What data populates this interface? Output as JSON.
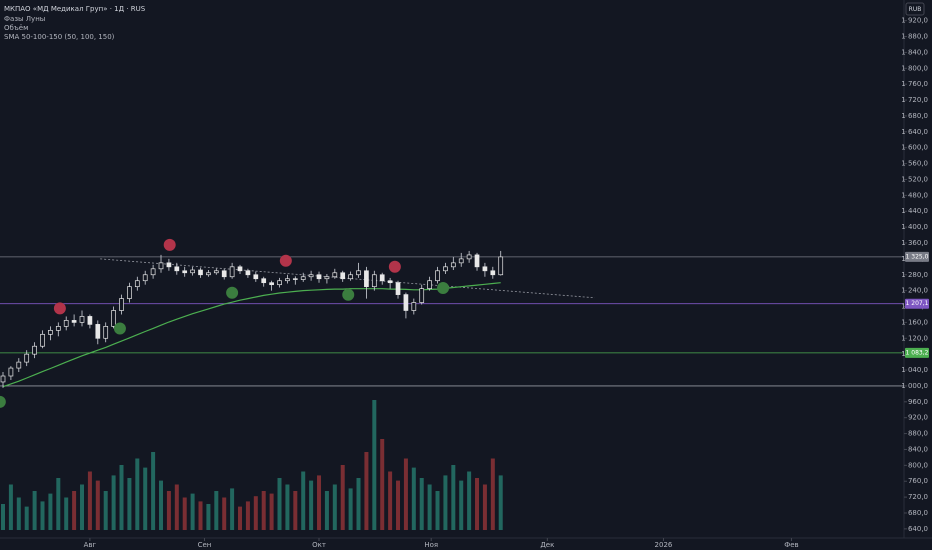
{
  "chart_data": {
    "type": "candlestick",
    "title": "МКПАО «МД Медикал Груп» · 1Д · RUS",
    "indicators": [
      "Фазы Луны",
      "Объём",
      "SMA 50-100-150 (50, 100, 150)"
    ],
    "currency": "RUB",
    "ohlc": [
      [
        1010,
        1035,
        995,
        1025
      ],
      [
        1025,
        1050,
        1015,
        1045
      ],
      [
        1045,
        1070,
        1035,
        1060
      ],
      [
        1060,
        1090,
        1050,
        1080
      ],
      [
        1080,
        1110,
        1070,
        1100
      ],
      [
        1100,
        1140,
        1095,
        1130
      ],
      [
        1130,
        1150,
        1115,
        1140
      ],
      [
        1140,
        1160,
        1125,
        1150
      ],
      [
        1150,
        1175,
        1140,
        1165
      ],
      [
        1165,
        1180,
        1150,
        1160
      ],
      [
        1160,
        1190,
        1150,
        1175
      ],
      [
        1175,
        1180,
        1145,
        1155
      ],
      [
        1155,
        1165,
        1105,
        1120
      ],
      [
        1120,
        1160,
        1110,
        1150
      ],
      [
        1150,
        1200,
        1145,
        1190
      ],
      [
        1190,
        1230,
        1180,
        1220
      ],
      [
        1220,
        1260,
        1210,
        1250
      ],
      [
        1250,
        1275,
        1240,
        1265
      ],
      [
        1265,
        1290,
        1255,
        1280
      ],
      [
        1280,
        1305,
        1270,
        1295
      ],
      [
        1295,
        1330,
        1285,
        1310
      ],
      [
        1310,
        1320,
        1290,
        1300
      ],
      [
        1300,
        1310,
        1280,
        1290
      ],
      [
        1290,
        1300,
        1275,
        1285
      ],
      [
        1285,
        1300,
        1278,
        1292
      ],
      [
        1292,
        1298,
        1272,
        1280
      ],
      [
        1280,
        1292,
        1275,
        1285
      ],
      [
        1285,
        1296,
        1280,
        1290
      ],
      [
        1290,
        1295,
        1268,
        1275
      ],
      [
        1275,
        1310,
        1270,
        1300
      ],
      [
        1300,
        1305,
        1282,
        1290
      ],
      [
        1290,
        1295,
        1272,
        1280
      ],
      [
        1280,
        1288,
        1262,
        1270
      ],
      [
        1270,
        1275,
        1250,
        1260
      ],
      [
        1260,
        1265,
        1240,
        1255
      ],
      [
        1255,
        1272,
        1248,
        1265
      ],
      [
        1265,
        1280,
        1258,
        1270
      ],
      [
        1270,
        1276,
        1255,
        1268
      ],
      [
        1268,
        1285,
        1262,
        1275
      ],
      [
        1275,
        1290,
        1265,
        1280
      ],
      [
        1280,
        1288,
        1260,
        1270
      ],
      [
        1270,
        1282,
        1258,
        1275
      ],
      [
        1275,
        1295,
        1270,
        1285
      ],
      [
        1285,
        1290,
        1262,
        1270
      ],
      [
        1270,
        1288,
        1265,
        1280
      ],
      [
        1280,
        1310,
        1272,
        1290
      ],
      [
        1290,
        1300,
        1220,
        1250
      ],
      [
        1250,
        1290,
        1240,
        1280
      ],
      [
        1280,
        1285,
        1255,
        1265
      ],
      [
        1265,
        1272,
        1245,
        1260
      ],
      [
        1260,
        1265,
        1220,
        1230
      ],
      [
        1230,
        1235,
        1170,
        1190
      ],
      [
        1190,
        1220,
        1180,
        1210
      ],
      [
        1210,
        1255,
        1205,
        1245
      ],
      [
        1245,
        1275,
        1240,
        1265
      ],
      [
        1265,
        1300,
        1258,
        1290
      ],
      [
        1290,
        1310,
        1282,
        1300
      ],
      [
        1300,
        1325,
        1292,
        1310
      ],
      [
        1310,
        1335,
        1300,
        1320
      ],
      [
        1320,
        1340,
        1310,
        1330
      ],
      [
        1330,
        1335,
        1290,
        1300
      ],
      [
        1300,
        1310,
        1275,
        1290
      ],
      [
        1290,
        1300,
        1270,
        1280
      ],
      [
        1280,
        1340,
        1278,
        1325
      ]
    ],
    "sma": [
      998,
      1005,
      1012,
      1020,
      1028,
      1036,
      1044,
      1052,
      1060,
      1068,
      1076,
      1083,
      1090,
      1097,
      1105,
      1113,
      1121,
      1129,
      1137,
      1145,
      1153,
      1161,
      1168,
      1175,
      1182,
      1188,
      1194,
      1200,
      1206,
      1211,
      1216,
      1220,
      1224,
      1228,
      1231,
      1234,
      1236,
      1238,
      1240,
      1241,
      1242,
      1243,
      1244,
      1244,
      1245,
      1245,
      1245,
      1245,
      1245,
      1244,
      1244,
      1243,
      1242,
      1242,
      1243,
      1244,
      1246,
      1248,
      1250,
      1252,
      1254,
      1256,
      1258,
      1260
    ],
    "sma_color": "#4caf50",
    "volume": [
      20,
      35,
      25,
      18,
      30,
      22,
      28,
      40,
      25,
      30,
      35,
      45,
      38,
      30,
      42,
      50,
      40,
      55,
      48,
      60,
      38,
      30,
      35,
      25,
      28,
      22,
      20,
      30,
      25,
      32,
      18,
      22,
      26,
      30,
      28,
      40,
      35,
      30,
      45,
      38,
      42,
      30,
      35,
      50,
      32,
      40,
      60,
      100,
      70,
      45,
      38,
      55,
      48,
      40,
      35,
      30,
      42,
      50,
      38,
      45,
      40,
      35,
      55,
      42
    ],
    "volume_lim": [
      0,
      100
    ],
    "up_color": "#e8e8e8",
    "down_color": "#e8e8e8",
    "volume_up_color": "#22675f",
    "volume_down_color": "#7a2e33",
    "full_moon_x": [
      7.2,
      21.1,
      35.8,
      49.6
    ],
    "full_moon_color": "#b2344a",
    "new_moon_x": [
      -0.4,
      14.8,
      29.0,
      43.7,
      55.7
    ],
    "new_moon_color": "#3b7d3f",
    "trend_line": [
      [
        12.3,
        1320
      ],
      [
        74.9,
        1222
      ]
    ],
    "levels": [
      {
        "value": 1325,
        "label": "1 325,0",
        "color": "#787b86"
      },
      {
        "value": 1207.1,
        "label": "1 207,1",
        "color": "#7e57c2"
      },
      {
        "value": 1083.2,
        "label": "1 083,2",
        "color": "#4caf50"
      },
      {
        "value": 1000,
        "color": "#9598a1"
      }
    ],
    "xlim": [
      -0.38,
      113.54
    ],
    "xticks": [
      {
        "value": 11.0,
        "label": "Авг"
      },
      {
        "value": 25.5,
        "label": "Сен"
      },
      {
        "value": 40.0,
        "label": "Окт"
      },
      {
        "value": 54.2,
        "label": "Ноя"
      },
      {
        "value": 68.9,
        "label": "Дек"
      },
      {
        "value": 83.6,
        "label": "2026"
      },
      {
        "value": 99.8,
        "label": "Фев"
      }
    ],
    "ylim": [
      617,
      1972
    ],
    "yticks": [
      {
        "value": 640,
        "label": "640,0"
      },
      {
        "value": 680,
        "label": "680,0"
      },
      {
        "value": 720,
        "label": "720,0"
      },
      {
        "value": 760,
        "label": "760,0"
      },
      {
        "value": 800,
        "label": "800,0"
      },
      {
        "value": 840,
        "label": "840,0"
      },
      {
        "value": 880,
        "label": "880,0"
      },
      {
        "value": 920,
        "label": "920,0"
      },
      {
        "value": 960,
        "label": "960,0"
      },
      {
        "value": 1000,
        "label": "1 000,0"
      },
      {
        "value": 1040,
        "label": "1 040,0"
      },
      {
        "value": 1080,
        "label": "1 080,0"
      },
      {
        "value": 1120,
        "label": "1 120,0"
      },
      {
        "value": 1160,
        "label": "1 160,0"
      },
      {
        "value": 1200,
        "label": "1 200,0"
      },
      {
        "value": 1240,
        "label": "1 240,0"
      },
      {
        "value": 1280,
        "label": "1 280,0"
      },
      {
        "value": 1320,
        "label": "1 320,0"
      },
      {
        "value": 1360,
        "label": "1 360,0"
      },
      {
        "value": 1400,
        "label": "1 400,0"
      },
      {
        "value": 1440,
        "label": "1 440,0"
      },
      {
        "value": 1480,
        "label": "1 480,0"
      },
      {
        "value": 1520,
        "label": "1 520,0"
      },
      {
        "value": 1560,
        "label": "1 560,0"
      },
      {
        "value": 1600,
        "label": "1 600,0"
      },
      {
        "value": 1640,
        "label": "1 640,0"
      },
      {
        "value": 1680,
        "label": "1 680,0"
      },
      {
        "value": 1720,
        "label": "1 720,0"
      },
      {
        "value": 1760,
        "label": "1 760,0"
      },
      {
        "value": 1800,
        "label": "1 800,0"
      },
      {
        "value": 1840,
        "label": "1 840,0"
      },
      {
        "value": 1880,
        "label": "1 880,0"
      },
      {
        "value": 1920,
        "label": "1 920,0"
      }
    ]
  }
}
